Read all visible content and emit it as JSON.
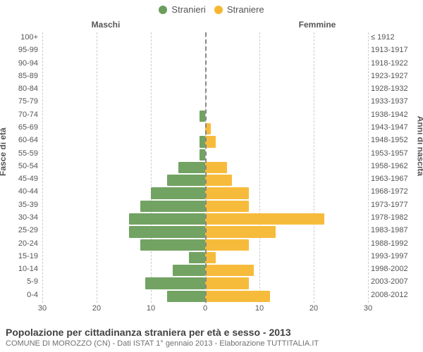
{
  "legend": {
    "male": {
      "label": "Stranieri",
      "color": "#6a9e5b"
    },
    "female": {
      "label": "Straniere",
      "color": "#f7b731"
    }
  },
  "columns": {
    "male": "Maschi",
    "female": "Femmine"
  },
  "axis_titles": {
    "left": "Fasce di età",
    "right": "Anni di nascita"
  },
  "x": {
    "max": 30,
    "ticks": [
      30,
      20,
      10,
      0,
      10,
      20,
      30
    ]
  },
  "grid_color": "#cccccc",
  "center_color": "#888888",
  "background": "#ffffff",
  "bar_fill_opacity": 0.95,
  "rows": [
    {
      "age": "100+",
      "birth": "≤ 1912",
      "m": 0,
      "f": 0
    },
    {
      "age": "95-99",
      "birth": "1913-1917",
      "m": 0,
      "f": 0
    },
    {
      "age": "90-94",
      "birth": "1918-1922",
      "m": 0,
      "f": 0
    },
    {
      "age": "85-89",
      "birth": "1923-1927",
      "m": 0,
      "f": 0
    },
    {
      "age": "80-84",
      "birth": "1928-1932",
      "m": 0,
      "f": 0
    },
    {
      "age": "75-79",
      "birth": "1933-1937",
      "m": 0,
      "f": 0
    },
    {
      "age": "70-74",
      "birth": "1938-1942",
      "m": 1,
      "f": 0
    },
    {
      "age": "65-69",
      "birth": "1943-1947",
      "m": 0,
      "f": 1
    },
    {
      "age": "60-64",
      "birth": "1948-1952",
      "m": 1,
      "f": 2
    },
    {
      "age": "55-59",
      "birth": "1953-1957",
      "m": 1,
      "f": 0
    },
    {
      "age": "50-54",
      "birth": "1958-1962",
      "m": 5,
      "f": 4
    },
    {
      "age": "45-49",
      "birth": "1963-1967",
      "m": 7,
      "f": 5
    },
    {
      "age": "40-44",
      "birth": "1968-1972",
      "m": 10,
      "f": 8
    },
    {
      "age": "35-39",
      "birth": "1973-1977",
      "m": 12,
      "f": 8
    },
    {
      "age": "30-34",
      "birth": "1978-1982",
      "m": 14,
      "f": 22
    },
    {
      "age": "25-29",
      "birth": "1983-1987",
      "m": 14,
      "f": 13
    },
    {
      "age": "20-24",
      "birth": "1988-1992",
      "m": 12,
      "f": 8
    },
    {
      "age": "15-19",
      "birth": "1993-1997",
      "m": 3,
      "f": 2
    },
    {
      "age": "10-14",
      "birth": "1998-2002",
      "m": 6,
      "f": 9
    },
    {
      "age": "5-9",
      "birth": "2003-2007",
      "m": 11,
      "f": 8
    },
    {
      "age": "0-4",
      "birth": "2008-2012",
      "m": 7,
      "f": 12
    }
  ],
  "footer": {
    "title": "Popolazione per cittadinanza straniera per età e sesso - 2013",
    "subtitle": "COMUNE DI MOROZZO (CN) - Dati ISTAT 1° gennaio 2013 - Elaborazione TUTTITALIA.IT"
  }
}
